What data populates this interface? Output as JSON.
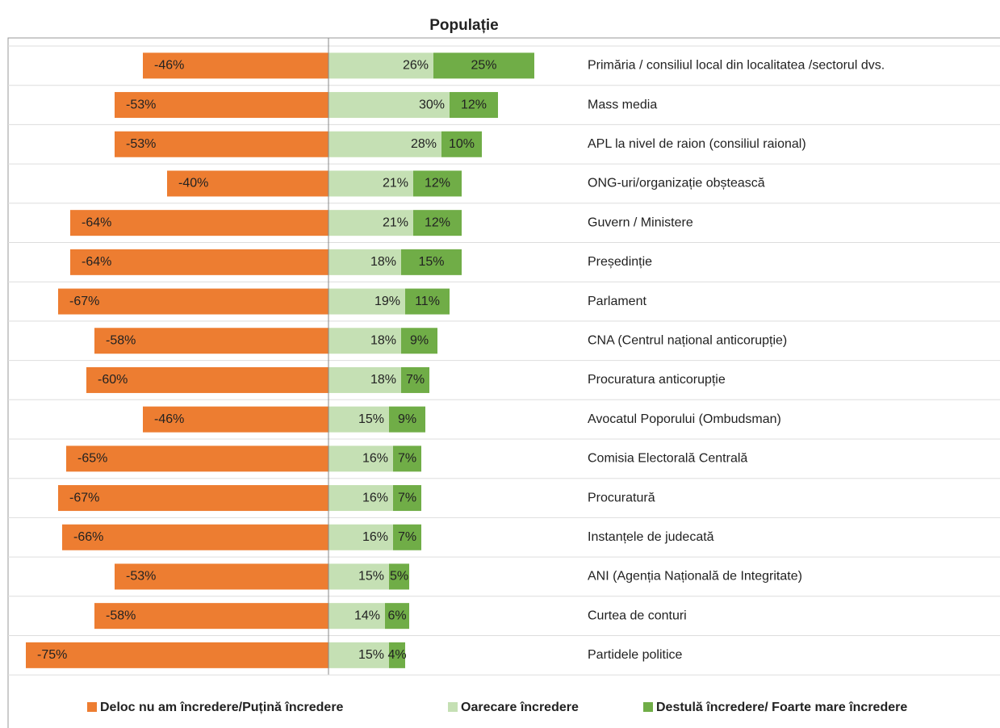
{
  "chart_data": {
    "type": "diverging-bar",
    "title": "Populație",
    "categories": [
      "Primăria / consiliul local din localitatea /sectorul dvs.",
      "Mass media",
      "APL la nivel de raion (consiliul raional)",
      "ONG-uri/organizație obștească",
      "Guvern / Ministere",
      "Președinție",
      "Parlament",
      "CNA (Centrul național anticorupție)",
      "Procuratura anticorupție",
      "Avocatul Poporului (Ombudsman)",
      "Comisia Electorală Centrală",
      "Procuratură",
      "Instanțele de judecată",
      "ANI (Agenția Națională de Integritate)",
      "Curtea de conturi",
      "Partidele politice"
    ],
    "series": [
      {
        "name": "Deloc nu am încredere/Puțină încredere",
        "color": "#ed7d31",
        "values": [
          -46,
          -53,
          -53,
          -40,
          -64,
          -64,
          -67,
          -58,
          -60,
          -46,
          -65,
          -67,
          -66,
          -53,
          -58,
          -75
        ],
        "value_labels": [
          "-46%",
          "-53%",
          "-53%",
          "-40%",
          "-64%",
          "-64%",
          "-67%",
          "-58%",
          "-60%",
          "-46%",
          "-65%",
          "-67%",
          "-66%",
          "-53%",
          "-58%",
          "-75%"
        ]
      },
      {
        "name": "Oarecare încredere",
        "color": "#c5e0b4",
        "values": [
          26,
          30,
          28,
          21,
          21,
          18,
          19,
          18,
          18,
          15,
          16,
          16,
          16,
          15,
          14,
          15
        ],
        "value_labels": [
          "26%",
          "30%",
          "28%",
          "21%",
          "21%",
          "18%",
          "19%",
          "18%",
          "18%",
          "15%",
          "16%",
          "16%",
          "16%",
          "15%",
          "14%",
          "15%"
        ]
      },
      {
        "name": "Destulă încredere/ Foarte mare încredere",
        "color": "#70ad47",
        "values": [
          25,
          12,
          10,
          12,
          12,
          15,
          11,
          9,
          7,
          9,
          7,
          7,
          7,
          5,
          6,
          4
        ],
        "value_labels": [
          "25%",
          "12%",
          "10%",
          "12%",
          "12%",
          "15%",
          "11%",
          "9%",
          "7%",
          "9%",
          "7%",
          "7%",
          "7%",
          "5%",
          "6%",
          "4%"
        ]
      }
    ],
    "xlim": [
      -80,
      64
    ],
    "legend": "bottom"
  }
}
